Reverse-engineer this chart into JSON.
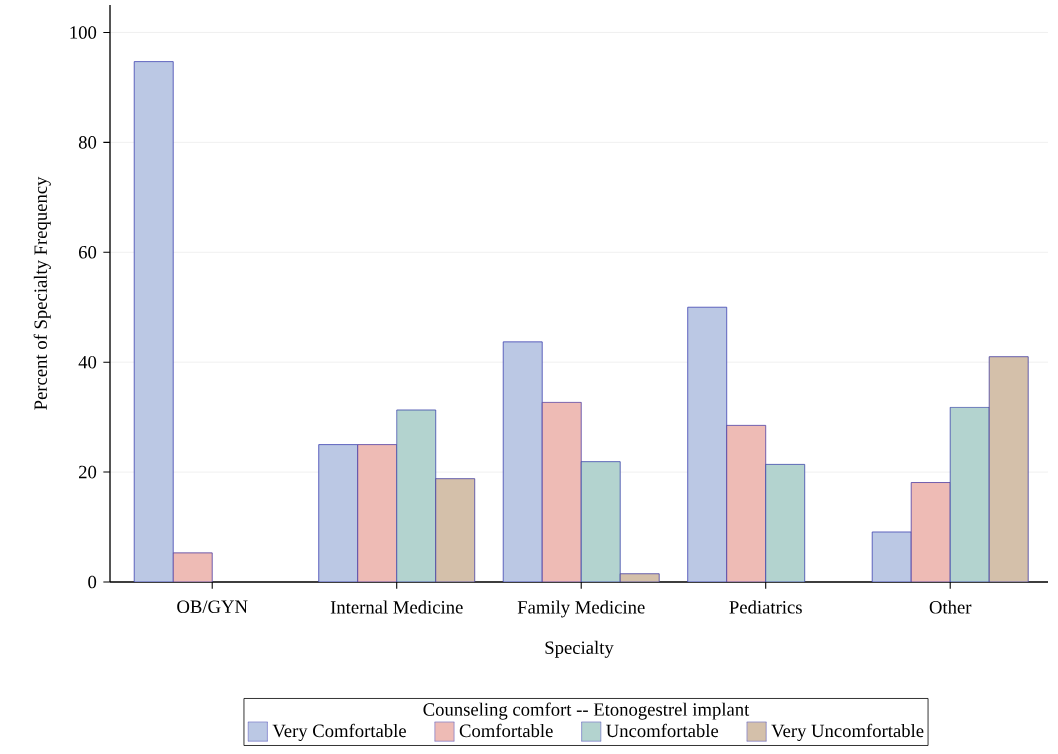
{
  "chart_data": {
    "type": "bar",
    "xlabel": "Specialty",
    "ylabel": "Percent of Specialty Frequency",
    "legend_title": "Counseling comfort -- Etonogestrel implant",
    "categories": [
      "OB/GYN",
      "Internal Medicine",
      "Family Medicine",
      "Pediatrics",
      "Other"
    ],
    "series": [
      {
        "name": "Very Comfortable",
        "color": "#bbc8e4",
        "values": [
          94.7,
          25,
          43.7,
          50,
          9.1
        ]
      },
      {
        "name": "Comfortable",
        "color": "#eebbb5",
        "values": [
          5.3,
          25,
          32.7,
          28.5,
          18.1
        ]
      },
      {
        "name": "Uncomfortable",
        "color": "#b3d3cf",
        "values": [
          null,
          31.3,
          21.9,
          21.4,
          31.8
        ]
      },
      {
        "name": "Very Uncomfortable",
        "color": "#d4c0aa",
        "values": [
          null,
          18.8,
          1.5,
          null,
          41.0
        ]
      }
    ],
    "ylim": [
      0,
      105
    ],
    "yticks": [
      0,
      20,
      40,
      60,
      80,
      100
    ],
    "grid": "y",
    "legend": "bottom"
  }
}
